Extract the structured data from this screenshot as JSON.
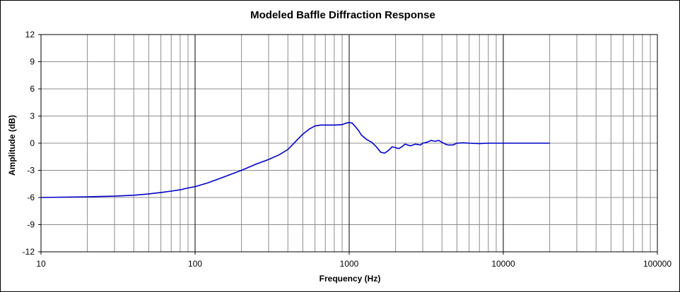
{
  "chart_data": {
    "type": "line",
    "title": "Modeled Baffle Diffraction Response",
    "xlabel": "Frequency (Hz)",
    "ylabel": "Amplitude (dB)",
    "x_scale": "log",
    "xlim": [
      10,
      100000
    ],
    "ylim": [
      -12,
      12
    ],
    "x_ticks": [
      10,
      100,
      1000,
      10000,
      100000
    ],
    "x_tick_labels": [
      "10",
      "100",
      "1000",
      "10000",
      "100000"
    ],
    "y_ticks": [
      -12,
      -9,
      -6,
      -3,
      0,
      3,
      6,
      9,
      12
    ],
    "y_tick_labels": [
      "-12",
      "-9",
      "-6",
      "-3",
      "0",
      "3",
      "6",
      "9",
      "12"
    ],
    "grid": true,
    "legend": "none",
    "series": [
      {
        "color": "#0000cc",
        "x": [
          10,
          20,
          30,
          40,
          50,
          60,
          70,
          80,
          90,
          100,
          120,
          150,
          200,
          250,
          300,
          350,
          400,
          450,
          500,
          550,
          600,
          650,
          700,
          800,
          900,
          950,
          1000,
          1050,
          1100,
          1150,
          1200,
          1300,
          1400,
          1500,
          1600,
          1700,
          1800,
          1900,
          2000,
          2100,
          2200,
          2300,
          2400,
          2500,
          2700,
          2900,
          3000,
          3200,
          3400,
          3600,
          3800,
          4000,
          4200,
          4400,
          4700,
          5000,
          5500,
          6000,
          7000,
          8000,
          10000,
          12000,
          15000,
          20000
        ],
        "y": [
          -6.0,
          -5.92,
          -5.85,
          -5.75,
          -5.6,
          -5.45,
          -5.3,
          -5.15,
          -4.95,
          -4.8,
          -4.4,
          -3.8,
          -3.0,
          -2.3,
          -1.8,
          -1.3,
          -0.7,
          0.2,
          1.0,
          1.55,
          1.9,
          2.0,
          2.0,
          2.0,
          2.05,
          2.2,
          2.3,
          2.2,
          1.8,
          1.4,
          0.9,
          0.4,
          0.1,
          -0.4,
          -1.0,
          -1.1,
          -0.8,
          -0.4,
          -0.5,
          -0.6,
          -0.4,
          -0.1,
          -0.2,
          -0.3,
          -0.1,
          -0.2,
          0.0,
          0.1,
          0.3,
          0.2,
          0.3,
          0.1,
          -0.1,
          -0.2,
          -0.2,
          0.0,
          0.05,
          0.0,
          -0.05,
          0.0,
          0.0,
          0.0,
          0.0,
          0.0
        ]
      }
    ]
  }
}
